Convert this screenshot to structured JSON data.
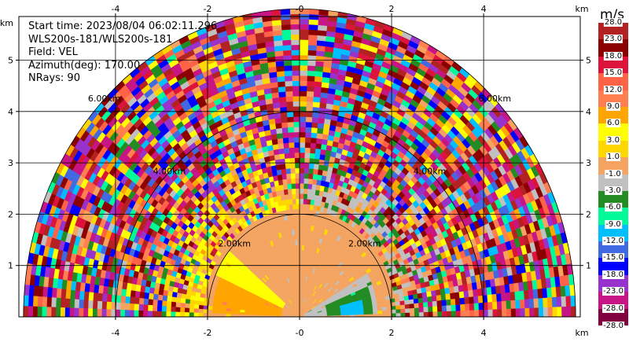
{
  "info": {
    "start_time": "Start time: 2023/08/04 06:02:11.296",
    "instrument": "WLS200s-181/WLS200s-181",
    "field": "Field: VEL",
    "azimuth": "Azimuth(deg): 170.00",
    "nrays": "NRays: 90"
  },
  "chart_data": {
    "type": "heatmap",
    "subtype": "RHI radar velocity scan",
    "xunit": "km",
    "yunit": "km",
    "xlim": [
      -6.1,
      6.1
    ],
    "ylim": [
      0,
      5.85
    ],
    "x_ticks": [
      "-4",
      "-2",
      "-0",
      "2",
      "4"
    ],
    "x_tick_values": [
      -4,
      -2,
      0,
      2,
      4
    ],
    "y_ticks": [
      "1",
      "2",
      "3",
      "4",
      "5"
    ],
    "y_tick_values": [
      1,
      2,
      3,
      4,
      5
    ],
    "range_rings_km": [
      2,
      4,
      6
    ],
    "range_ring_labels": [
      "2.00km",
      "4.00km",
      "6.00km"
    ],
    "max_range_km": 6.0,
    "grid": true,
    "colorbar": {
      "unit": "m/s",
      "placement": "right",
      "levels": [
        "28.0",
        "23.0",
        "18.0",
        "15.0",
        "12.0",
        "9.0",
        "6.0",
        "3.0",
        "1.0",
        "-1.0",
        "-3.0",
        "-6.0",
        "-9.0",
        "-12.0",
        "-15.0",
        "-18.0",
        "-23.0",
        "-28.0"
      ],
      "colors": [
        "#b22222",
        "#8b0000",
        "#dc143c",
        "#ff6347",
        "#ff7f50",
        "#ffa500",
        "#ffff00",
        "#ffd700",
        "#f4a460",
        "#c0c0c0",
        "#228b22",
        "#00fa9a",
        "#00bfff",
        "#4169e1",
        "#0000ff",
        "#9932cc",
        "#c71585",
        "#800040"
      ]
    },
    "regions": [
      {
        "name": "near-zero",
        "r_range_km": [
          0,
          2.1
        ],
        "elev_range_deg": [
          10,
          170
        ],
        "value": 0.0
      },
      {
        "name": "toward-left-yellow",
        "r_range_km": [
          0.45,
          1.9
        ],
        "elev_range_deg": [
          155,
          178
        ],
        "value": 7.5
      },
      {
        "name": "toward-left-orange",
        "r_range_km": [
          0.45,
          2.0
        ],
        "elev_range_deg": [
          140,
          155
        ],
        "value": 3.5
      },
      {
        "name": "away-right-green",
        "r_range_km": [
          0.15,
          1.7
        ],
        "elev_range_deg": [
          2,
          30
        ],
        "value": -2.0
      },
      {
        "name": "away-right-mint",
        "r_range_km": [
          0.6,
          1.6
        ],
        "elev_range_deg": [
          2,
          22
        ],
        "value": -5.0
      },
      {
        "name": "away-right-blue",
        "r_range_km": [
          0.9,
          1.4
        ],
        "elev_range_deg": [
          3,
          14
        ],
        "value": -9.5
      },
      {
        "name": "noise",
        "r_range_km": [
          2.0,
          6.0
        ],
        "elev_range_deg": [
          0,
          180
        ],
        "value": null
      }
    ]
  }
}
